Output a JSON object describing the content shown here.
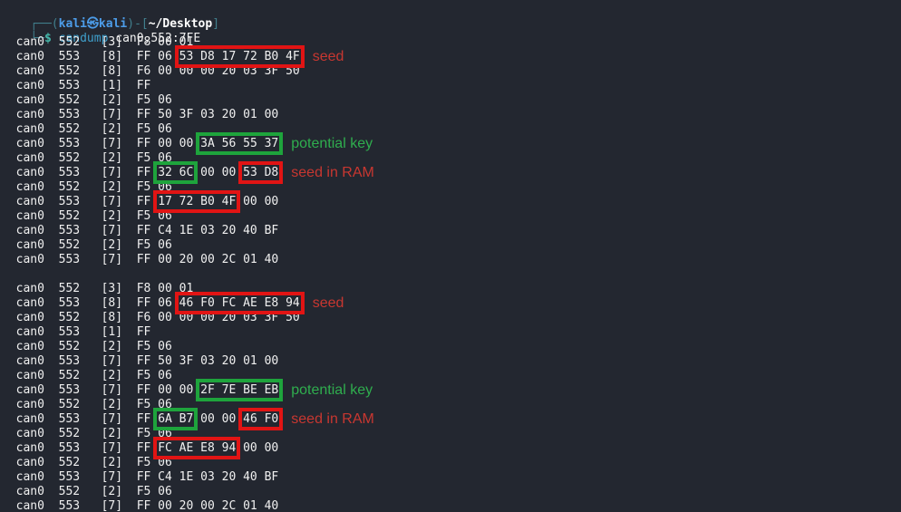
{
  "colors": {
    "background": "#232730",
    "foreground": "#f0f0f0",
    "prompt_frame": "#417f8d",
    "prompt_user": "#4c9ce8",
    "prompt_path": "#ffffff",
    "prompt_dollar": "#45b8ab",
    "command": "#3fa0cc",
    "red_box": "#e11414",
    "green_box": "#1ea43c",
    "red_label": "#c83730",
    "green_label": "#2fae4e"
  },
  "prompt": {
    "frame_open": "┌──(",
    "user": "kali㉿kali",
    "frame_mid": ")-[",
    "path": "~/Desktop",
    "frame_close": "]",
    "frame_line2": "└─",
    "dollar": "$ ",
    "command": "candump",
    "args": " can0,552:7FE"
  },
  "output_lines": [
    {
      "parts": [
        {
          "t": "  can0  552   [3]  F8 00 01"
        }
      ]
    },
    {
      "parts": [
        {
          "t": "  can0  553   [8]  FF 06 "
        },
        {
          "t": "53 D8 17 72 B0 4F",
          "box": "red"
        }
      ],
      "label": {
        "t": "seed",
        "c": "red"
      }
    },
    {
      "parts": [
        {
          "t": "  can0  552   [8]  F6 00 00 00 20 03 3F 50"
        }
      ]
    },
    {
      "parts": [
        {
          "t": "  can0  553   [1]  FF"
        }
      ]
    },
    {
      "parts": [
        {
          "t": "  can0  552   [2]  F5 06"
        }
      ]
    },
    {
      "parts": [
        {
          "t": "  can0  553   [7]  FF 50 3F 03 20 01 00"
        }
      ]
    },
    {
      "parts": [
        {
          "t": "  can0  552   [2]  F5 06"
        }
      ]
    },
    {
      "parts": [
        {
          "t": "  can0  553   [7]  FF 00 00 "
        },
        {
          "t": "3A 56 55 37",
          "box": "green"
        }
      ],
      "label": {
        "t": "potential key",
        "c": "green"
      }
    },
    {
      "parts": [
        {
          "t": "  can0  552   [2]  F5 06"
        }
      ]
    },
    {
      "parts": [
        {
          "t": "  can0  553   [7]  FF "
        },
        {
          "t": "32 6C",
          "box": "green"
        },
        {
          "t": " 00 00 "
        },
        {
          "t": "53 D8",
          "box": "red"
        }
      ],
      "label": {
        "t": "seed in RAM",
        "c": "red"
      }
    },
    {
      "parts": [
        {
          "t": "  can0  552   [2]  F5 06"
        }
      ]
    },
    {
      "parts": [
        {
          "t": "  can0  553   [7]  FF "
        },
        {
          "t": "17 72 B0 4F",
          "box": "red"
        },
        {
          "t": " 00 00"
        }
      ]
    },
    {
      "parts": [
        {
          "t": "  can0  552   [2]  F5 06"
        }
      ]
    },
    {
      "parts": [
        {
          "t": "  can0  553   [7]  FF C4 1E 03 20 40 BF"
        }
      ]
    },
    {
      "parts": [
        {
          "t": "  can0  552   [2]  F5 06"
        }
      ]
    },
    {
      "parts": [
        {
          "t": "  can0  553   [7]  FF 00 20 00 2C 01 40"
        }
      ]
    },
    {
      "blank": true,
      "parts": []
    },
    {
      "parts": [
        {
          "t": "  can0  552   [3]  F8 00 01"
        }
      ]
    },
    {
      "parts": [
        {
          "t": "  can0  553   [8]  FF 06 "
        },
        {
          "t": "46 F0 FC AE E8 94",
          "box": "red"
        }
      ],
      "label": {
        "t": "seed",
        "c": "red"
      }
    },
    {
      "parts": [
        {
          "t": "  can0  552   [8]  F6 00 00 00 20 03 3F 50"
        }
      ]
    },
    {
      "parts": [
        {
          "t": "  can0  553   [1]  FF"
        }
      ]
    },
    {
      "parts": [
        {
          "t": "  can0  552   [2]  F5 06"
        }
      ]
    },
    {
      "parts": [
        {
          "t": "  can0  553   [7]  FF 50 3F 03 20 01 00"
        }
      ]
    },
    {
      "parts": [
        {
          "t": "  can0  552   [2]  F5 06"
        }
      ]
    },
    {
      "parts": [
        {
          "t": "  can0  553   [7]  FF 00 00 "
        },
        {
          "t": "2F 7E BE EB",
          "box": "green"
        }
      ],
      "label": {
        "t": "potential key",
        "c": "green"
      }
    },
    {
      "parts": [
        {
          "t": "  can0  552   [2]  F5 06"
        }
      ]
    },
    {
      "parts": [
        {
          "t": "  can0  553   [7]  FF "
        },
        {
          "t": "6A B7",
          "box": "green"
        },
        {
          "t": " 00 00 "
        },
        {
          "t": "46 F0",
          "box": "red"
        }
      ],
      "label": {
        "t": "seed in RAM",
        "c": "red"
      }
    },
    {
      "parts": [
        {
          "t": "  can0  552   [2]  F5 06"
        }
      ]
    },
    {
      "parts": [
        {
          "t": "  can0  553   [7]  FF "
        },
        {
          "t": "FC AE E8 94",
          "box": "red"
        },
        {
          "t": " 00 00"
        }
      ]
    },
    {
      "parts": [
        {
          "t": "  can0  552   [2]  F5 06"
        }
      ]
    },
    {
      "parts": [
        {
          "t": "  can0  553   [7]  FF C4 1E 03 20 40 BF"
        }
      ]
    },
    {
      "parts": [
        {
          "t": "  can0  552   [2]  F5 06"
        }
      ]
    },
    {
      "parts": [
        {
          "t": "  can0  553   [7]  FF 00 20 00 2C 01 40"
        }
      ]
    }
  ]
}
